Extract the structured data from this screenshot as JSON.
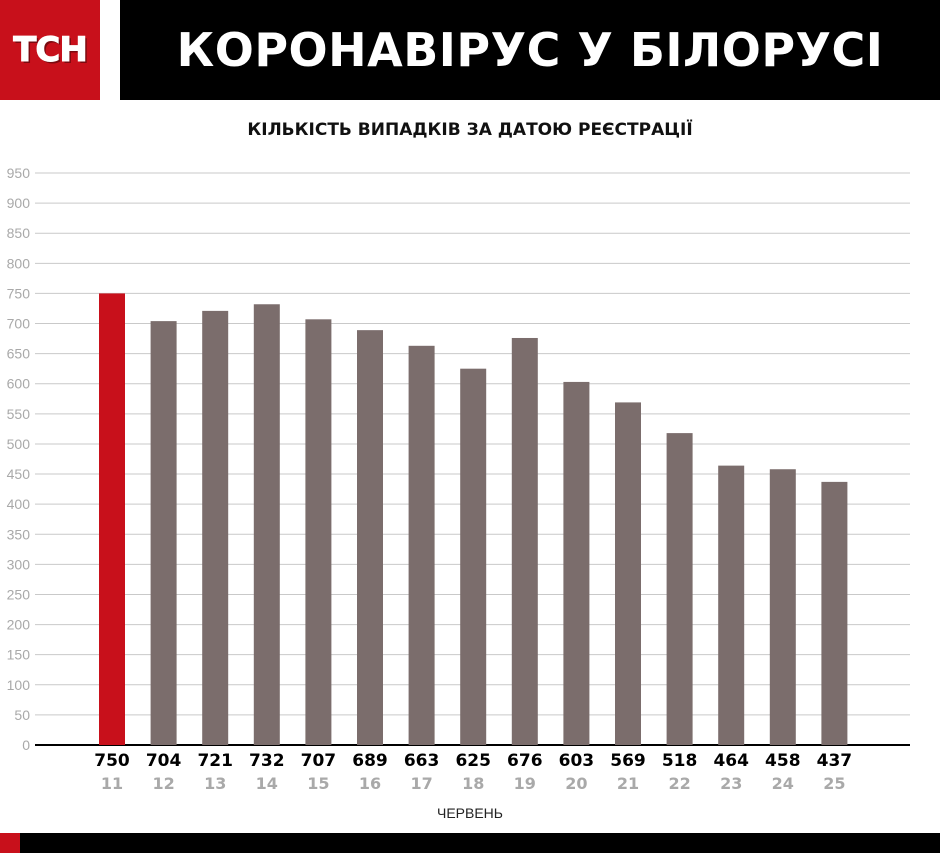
{
  "header": {
    "logo_text": "ТСН",
    "title": "КОРОНАВІРУС У БІЛОРУСІ"
  },
  "colors": {
    "brand_red": "#c8101b",
    "bar_default": "#7b6d6c",
    "bar_highlight": "#c8101b",
    "grid": "#c9c9c9",
    "axis_label": "#a9a9a9",
    "day_label": "#a9a9a9",
    "value_label": "#000000"
  },
  "chart_data": {
    "type": "bar",
    "title": "КІЛЬКІСТЬ ВИПАДКІВ ЗА ДАТОЮ РЕЄСТРАЦІЇ",
    "xlabel": "ЧЕРВЕНЬ",
    "ylabel": "",
    "ylim": [
      0,
      950
    ],
    "yticks": [
      0,
      50,
      100,
      150,
      200,
      250,
      300,
      350,
      400,
      450,
      500,
      550,
      600,
      650,
      700,
      750,
      800,
      850,
      900,
      950
    ],
    "grid": true,
    "categories": [
      "11",
      "12",
      "13",
      "14",
      "15",
      "16",
      "17",
      "18",
      "19",
      "20",
      "21",
      "22",
      "23",
      "24",
      "25"
    ],
    "values": [
      750,
      704,
      721,
      732,
      707,
      689,
      663,
      625,
      676,
      603,
      569,
      518,
      464,
      458,
      437
    ],
    "highlight_index": 0
  }
}
